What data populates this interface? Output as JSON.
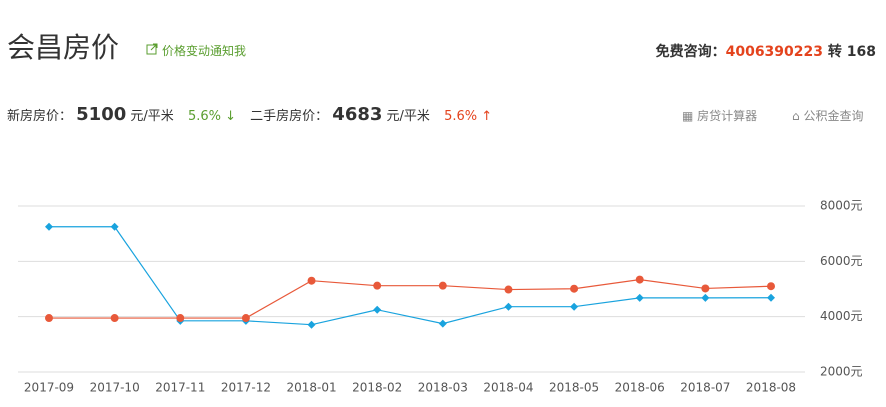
{
  "header": {
    "title": "会昌房价",
    "notify": "价格变动通知我",
    "consult_label": "免费咨询：",
    "phone": "4006390223",
    "ext": "转 168"
  },
  "prices": {
    "new_label": "新房房价：",
    "new_price": "5100",
    "new_unit": "元/平米",
    "new_change": "5.6% ↓",
    "second_label": "二手房房价：",
    "second_price": "4683",
    "second_unit": "元/平米",
    "second_change": "5.6% ↑"
  },
  "tools": {
    "calculator": "房贷计算器",
    "fund": "公积金查询"
  },
  "chart_data": {
    "type": "line",
    "categories": [
      "2017-09",
      "2017-10",
      "2017-11",
      "2017-12",
      "2018-01",
      "2018-02",
      "2018-03",
      "2018-04",
      "2018-05",
      "2018-06",
      "2018-07",
      "2018-08"
    ],
    "series": [
      {
        "color": "#19a3de",
        "marker": "diamond",
        "values": [
          7250,
          7250,
          3850,
          3850,
          3710,
          4250,
          3750,
          4360,
          4360,
          4680,
          4680,
          4683
        ]
      },
      {
        "color": "#e8593a",
        "marker": "circle",
        "values": [
          3950,
          3950,
          3950,
          3950,
          5300,
          5120,
          5120,
          4980,
          5010,
          5340,
          5020,
          5100
        ]
      }
    ],
    "ylim": [
      2000,
      8000
    ],
    "yticks": [
      {
        "value": 2000,
        "label": "2000元"
      },
      {
        "value": 4000,
        "label": "4000元"
      },
      {
        "value": 6000,
        "label": "6000元"
      },
      {
        "value": 8000,
        "label": "8000元"
      }
    ],
    "grid": true
  }
}
